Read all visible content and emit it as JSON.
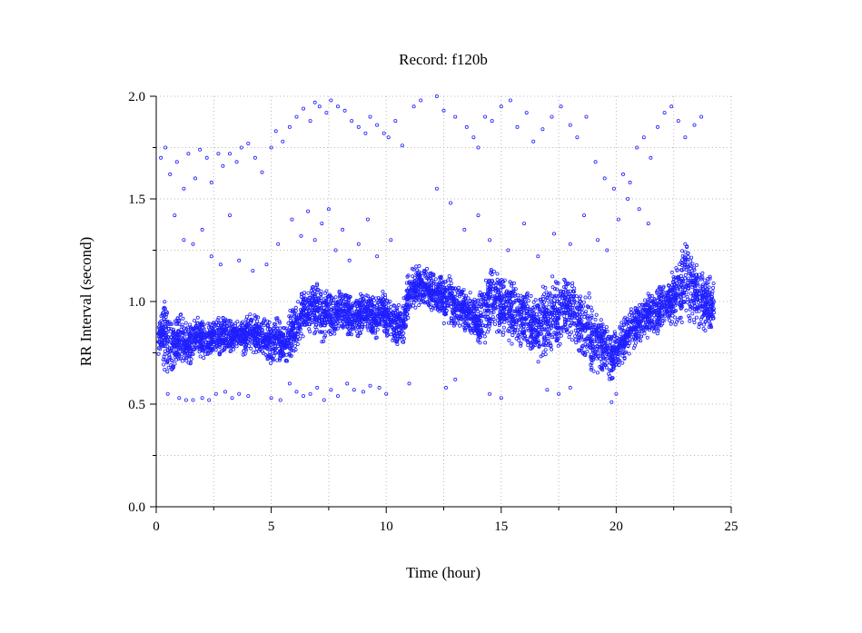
{
  "chart_data": {
    "type": "scatter",
    "title": "Record:  f120b",
    "xlabel": "Time (hour)",
    "ylabel": "RR Interval (second)",
    "xlim": [
      0,
      25
    ],
    "ylim": [
      0,
      2
    ],
    "x_ticks": [
      "0",
      "5",
      "10",
      "15",
      "20",
      "25"
    ],
    "y_ticks": [
      "0.0",
      "0.5",
      "1.0",
      "1.5",
      "2.0"
    ],
    "grid": true,
    "marker": "open-circle",
    "series_color": "#1f1fff",
    "series": [
      {
        "x": [
          0.1,
          0.3,
          0.5,
          0.8,
          1.0,
          1.3,
          1.5,
          1.8,
          2.0,
          2.3,
          2.5,
          2.8,
          3.0,
          3.3,
          3.5,
          3.8,
          4.0,
          4.3,
          4.5,
          4.8,
          5.0,
          5.3,
          5.5,
          5.8,
          6.0,
          6.3,
          6.5,
          6.8,
          7.0,
          7.3,
          7.5,
          7.8,
          8.0,
          8.3,
          8.5,
          8.8,
          9.0,
          9.3,
          9.5,
          9.8,
          10.0,
          10.3,
          10.5,
          10.8,
          11.0,
          11.3,
          11.5,
          11.8,
          12.0,
          12.3,
          12.5,
          12.8,
          13.0,
          13.3,
          13.5,
          13.8,
          14.0,
          14.3,
          14.5,
          14.8,
          15.0,
          15.3,
          15.5,
          15.8,
          16.0,
          16.3,
          16.5,
          16.8,
          17.0,
          17.3,
          17.5,
          17.8,
          18.0,
          18.3,
          18.5,
          18.8,
          19.0,
          19.3,
          19.5,
          19.8,
          20.0,
          20.3,
          20.5,
          20.8,
          21.0,
          21.3,
          21.5,
          21.8,
          22.0,
          22.3,
          22.5,
          22.8,
          23.0,
          23.3,
          23.5,
          23.8,
          24.0
        ],
        "y": [
          0.82,
          0.85,
          0.8,
          0.78,
          0.83,
          0.81,
          0.79,
          0.84,
          0.82,
          0.8,
          0.84,
          0.82,
          0.85,
          0.83,
          0.84,
          0.82,
          0.86,
          0.84,
          0.83,
          0.82,
          0.8,
          0.82,
          0.78,
          0.82,
          0.86,
          0.93,
          0.94,
          0.98,
          0.96,
          0.93,
          0.95,
          0.92,
          0.96,
          0.94,
          0.93,
          0.92,
          0.95,
          0.94,
          0.92,
          0.95,
          0.93,
          0.9,
          0.88,
          0.92,
          1.05,
          1.07,
          1.08,
          1.06,
          1.05,
          1.04,
          1.02,
          1.0,
          0.98,
          0.96,
          0.95,
          0.93,
          0.9,
          0.95,
          1.02,
          1.0,
          0.98,
          0.97,
          0.95,
          0.93,
          0.92,
          0.9,
          0.88,
          0.9,
          0.93,
          0.95,
          0.92,
          0.98,
          0.95,
          0.92,
          0.9,
          0.88,
          0.82,
          0.8,
          0.77,
          0.72,
          0.76,
          0.8,
          0.85,
          0.88,
          0.9,
          0.93,
          0.94,
          0.95,
          0.97,
          1.0,
          1.02,
          1.05,
          1.1,
          1.08,
          1.04,
          1.0,
          0.98
        ],
        "spread": [
          0.08,
          0.12,
          0.1,
          0.09,
          0.09,
          0.08,
          0.07,
          0.08,
          0.07,
          0.07,
          0.07,
          0.07,
          0.06,
          0.06,
          0.06,
          0.07,
          0.07,
          0.07,
          0.08,
          0.08,
          0.08,
          0.08,
          0.09,
          0.1,
          0.1,
          0.09,
          0.09,
          0.1,
          0.1,
          0.09,
          0.08,
          0.08,
          0.08,
          0.08,
          0.08,
          0.08,
          0.08,
          0.08,
          0.08,
          0.08,
          0.08,
          0.08,
          0.09,
          0.09,
          0.08,
          0.08,
          0.08,
          0.08,
          0.08,
          0.09,
          0.1,
          0.09,
          0.09,
          0.08,
          0.08,
          0.08,
          0.1,
          0.12,
          0.12,
          0.12,
          0.12,
          0.12,
          0.12,
          0.12,
          0.12,
          0.12,
          0.14,
          0.14,
          0.14,
          0.14,
          0.13,
          0.12,
          0.12,
          0.12,
          0.13,
          0.14,
          0.12,
          0.11,
          0.1,
          0.08,
          0.08,
          0.08,
          0.08,
          0.08,
          0.08,
          0.08,
          0.09,
          0.09,
          0.09,
          0.1,
          0.12,
          0.14,
          0.14,
          0.12,
          0.12,
          0.12,
          0.11
        ]
      },
      {
        "name": "",
        "x": [
          0.2,
          0.4,
          0.6,
          0.9,
          1.2,
          1.4,
          1.7,
          1.9,
          2.2,
          2.4,
          2.7,
          2.9,
          3.2,
          3.5,
          3.7,
          4.0,
          4.3,
          4.6,
          5.0,
          5.2,
          5.5,
          5.8,
          6.1,
          6.4,
          6.7,
          6.9,
          7.1,
          7.4,
          7.6,
          7.9,
          8.2,
          8.5,
          8.8,
          9.1,
          9.3,
          9.6,
          9.9,
          10.1,
          10.4,
          10.7,
          11.2,
          11.5,
          12.2,
          12.5,
          13.0,
          13.5,
          13.8,
          14.0,
          14.3,
          14.6,
          15.0,
          15.4,
          15.7,
          16.1,
          16.4,
          16.8,
          17.2,
          17.6,
          18.0,
          18.3,
          18.7,
          19.1,
          19.5,
          19.9,
          20.3,
          20.6,
          20.9,
          21.2,
          21.5,
          21.8,
          22.1,
          22.4,
          22.7,
          23.0,
          23.4,
          23.7
        ],
        "y": [
          1.7,
          1.75,
          1.62,
          1.68,
          1.55,
          1.72,
          1.6,
          1.74,
          1.7,
          1.58,
          1.72,
          1.66,
          1.72,
          1.68,
          1.75,
          1.77,
          1.7,
          1.63,
          1.75,
          1.83,
          1.78,
          1.85,
          1.9,
          1.94,
          1.88,
          1.97,
          1.95,
          1.92,
          1.98,
          1.95,
          1.93,
          1.88,
          1.85,
          1.82,
          1.9,
          1.86,
          1.82,
          1.8,
          1.88,
          1.76,
          1.95,
          1.98,
          2.0,
          1.93,
          1.9,
          1.85,
          1.8,
          1.75,
          1.9,
          1.88,
          1.95,
          1.98,
          1.85,
          1.92,
          1.78,
          1.84,
          1.9,
          1.95,
          1.86,
          1.8,
          1.9,
          1.68,
          1.6,
          1.55,
          1.62,
          1.58,
          1.75,
          1.8,
          1.7,
          1.85,
          1.92,
          1.95,
          1.88,
          1.8,
          1.86,
          1.9
        ],
        "spread": [
          0,
          0,
          0,
          0,
          0,
          0,
          0,
          0,
          0,
          0,
          0,
          0,
          0,
          0,
          0,
          0,
          0,
          0,
          0,
          0,
          0,
          0,
          0,
          0,
          0,
          0,
          0,
          0,
          0,
          0,
          0,
          0,
          0,
          0,
          0,
          0,
          0,
          0,
          0,
          0,
          0,
          0,
          0,
          0,
          0,
          0,
          0,
          0,
          0,
          0,
          0,
          0,
          0,
          0,
          0,
          0,
          0,
          0,
          0,
          0,
          0,
          0,
          0,
          0,
          0,
          0,
          0,
          0,
          0,
          0,
          0,
          0,
          0,
          0,
          0,
          0
        ]
      },
      {
        "name": "",
        "x": [
          0.5,
          1.0,
          1.3,
          1.6,
          2.0,
          2.3,
          2.6,
          3.0,
          3.3,
          3.6,
          4.0,
          5.0,
          5.4,
          5.8,
          6.1,
          6.4,
          6.7,
          7.0,
          7.3,
          7.6,
          7.9,
          8.3,
          8.6,
          9.0,
          9.3,
          9.7,
          10.0,
          11.0,
          12.6,
          13.0,
          14.5,
          15.0,
          17.0,
          17.5,
          18.0,
          19.8,
          20.0
        ],
        "y": [
          0.55,
          0.53,
          0.52,
          0.52,
          0.53,
          0.52,
          0.55,
          0.56,
          0.53,
          0.55,
          0.54,
          0.53,
          0.52,
          0.6,
          0.56,
          0.54,
          0.55,
          0.58,
          0.52,
          0.57,
          0.54,
          0.6,
          0.57,
          0.56,
          0.59,
          0.58,
          0.55,
          0.6,
          0.58,
          0.62,
          0.55,
          0.53,
          0.57,
          0.55,
          0.58,
          0.51,
          0.55
        ],
        "spread": [
          0,
          0,
          0,
          0,
          0,
          0,
          0,
          0,
          0,
          0,
          0,
          0,
          0,
          0,
          0,
          0,
          0,
          0,
          0,
          0,
          0,
          0,
          0,
          0,
          0,
          0,
          0,
          0,
          0,
          0,
          0,
          0,
          0,
          0,
          0,
          0,
          0
        ]
      },
      {
        "name": "",
        "x": [
          0.8,
          1.2,
          1.6,
          2.0,
          2.4,
          2.8,
          3.2,
          3.6,
          4.2,
          4.8,
          5.3,
          5.9,
          6.3,
          6.6,
          6.9,
          7.2,
          7.5,
          7.8,
          8.1,
          8.4,
          8.8,
          9.2,
          9.6,
          10.2,
          12.2,
          12.8,
          13.4,
          14.0,
          14.5,
          15.3,
          16.0,
          16.6,
          17.3,
          18.0,
          18.6,
          19.2,
          19.6,
          20.1,
          20.5,
          21.0,
          21.4
        ],
        "y": [
          1.42,
          1.3,
          1.28,
          1.35,
          1.22,
          1.18,
          1.42,
          1.2,
          1.15,
          1.18,
          1.28,
          1.4,
          1.32,
          1.44,
          1.3,
          1.38,
          1.45,
          1.25,
          1.35,
          1.2,
          1.28,
          1.4,
          1.22,
          1.3,
          1.55,
          1.48,
          1.35,
          1.42,
          1.3,
          1.25,
          1.38,
          1.22,
          1.33,
          1.28,
          1.42,
          1.3,
          1.25,
          1.4,
          1.5,
          1.45,
          1.38
        ],
        "spread": [
          0,
          0,
          0,
          0,
          0,
          0,
          0,
          0,
          0,
          0,
          0,
          0,
          0,
          0,
          0,
          0,
          0,
          0,
          0,
          0,
          0,
          0,
          0,
          0,
          0,
          0,
          0,
          0,
          0,
          0,
          0,
          0,
          0,
          0,
          0,
          0,
          0,
          0,
          0,
          0,
          0
        ]
      }
    ]
  }
}
